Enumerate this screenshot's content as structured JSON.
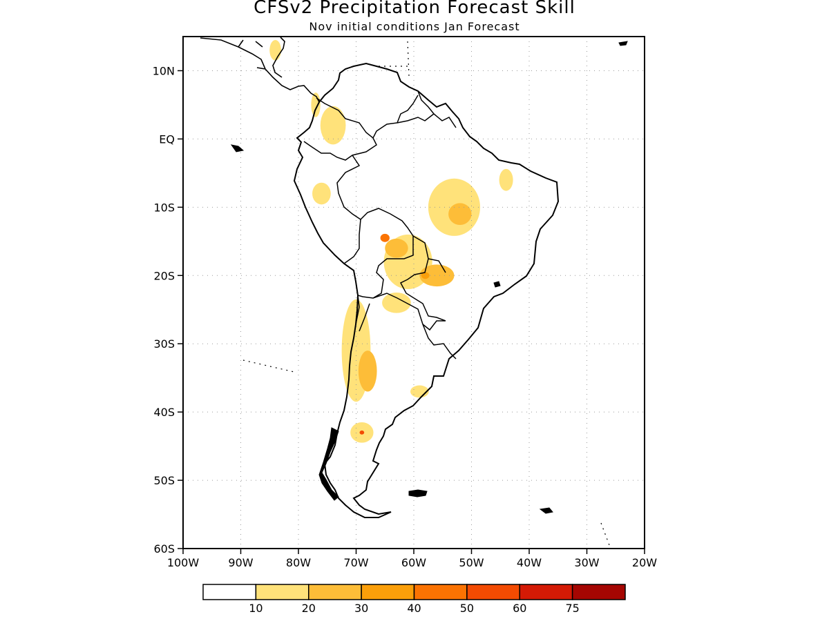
{
  "title": "CFSv2 Precipitation Forecast Skill",
  "subtitle": "Nov initial conditions  Jan Forecast",
  "map": {
    "lon_range": [
      -100,
      -20
    ],
    "lat_range": [
      -60,
      15
    ],
    "lat_ticks": [
      {
        "value": 10,
        "label": "10N"
      },
      {
        "value": 0,
        "label": "EQ"
      },
      {
        "value": -10,
        "label": "10S"
      },
      {
        "value": -20,
        "label": "20S"
      },
      {
        "value": -30,
        "label": "30S"
      },
      {
        "value": -40,
        "label": "40S"
      },
      {
        "value": -50,
        "label": "50S"
      },
      {
        "value": -60,
        "label": "60S"
      }
    ],
    "lon_ticks": [
      {
        "value": -100,
        "label": "100W"
      },
      {
        "value": -90,
        "label": "90W"
      },
      {
        "value": -80,
        "label": "80W"
      },
      {
        "value": -70,
        "label": "70W"
      },
      {
        "value": -60,
        "label": "60W"
      },
      {
        "value": -50,
        "label": "50W"
      },
      {
        "value": -40,
        "label": "40W"
      },
      {
        "value": -30,
        "label": "30W"
      },
      {
        "value": -20,
        "label": "20W"
      }
    ],
    "grid": "dotted"
  },
  "colorbar": {
    "colors": [
      "#ffffff",
      "#ffe27a",
      "#fdbd38",
      "#fb9f0a",
      "#fb7302",
      "#f34b02",
      "#d41a05",
      "#a50602"
    ],
    "labels": [
      "10",
      "20",
      "30",
      "40",
      "50",
      "60",
      "75"
    ]
  },
  "skill_regions": [
    {
      "lon": -61,
      "lat": -18,
      "rx": 4.2,
      "ry": 4,
      "level": 1
    },
    {
      "lon": -53,
      "lat": -10,
      "rx": 4.5,
      "ry": 4.2,
      "level": 1
    },
    {
      "lon": -70,
      "lat": -31,
      "rx": 2.5,
      "ry": 7.5,
      "level": 1
    },
    {
      "lon": -63,
      "lat": -24,
      "rx": 2.5,
      "ry": 1.5,
      "level": 1
    },
    {
      "lon": -74,
      "lat": 2,
      "rx": 2.2,
      "ry": 2.8,
      "level": 1
    },
    {
      "lon": -76,
      "lat": -8,
      "rx": 1.6,
      "ry": 1.6,
      "level": 1
    },
    {
      "lon": -69,
      "lat": -43,
      "rx": 2,
      "ry": 1.5,
      "level": 1
    },
    {
      "lon": -59,
      "lat": -37,
      "rx": 1.6,
      "ry": 0.9,
      "level": 1
    },
    {
      "lon": -84,
      "lat": 13,
      "rx": 1,
      "ry": 1.5,
      "level": 1
    },
    {
      "lon": -77,
      "lat": 5,
      "rx": 0.8,
      "ry": 1.8,
      "level": 1
    },
    {
      "lon": -44,
      "lat": -6,
      "rx": 1.2,
      "ry": 1.6,
      "level": 1
    },
    {
      "lon": -63,
      "lat": -16,
      "rx": 2,
      "ry": 1.4,
      "level": 2
    },
    {
      "lon": -56,
      "lat": -20,
      "rx": 3,
      "ry": 1.6,
      "level": 2
    },
    {
      "lon": -68,
      "lat": -34,
      "rx": 1.6,
      "ry": 3,
      "level": 2
    },
    {
      "lon": -52,
      "lat": -11,
      "rx": 2,
      "ry": 1.6,
      "level": 2
    },
    {
      "lon": -65,
      "lat": -14.5,
      "rx": 0.8,
      "ry": 0.6,
      "level": 4
    },
    {
      "lon": -58,
      "lat": -20,
      "rx": 0.7,
      "ry": 0.5,
      "level": 3
    },
    {
      "lon": -69,
      "lat": -43,
      "rx": 0.4,
      "ry": 0.3,
      "level": 5
    }
  ]
}
